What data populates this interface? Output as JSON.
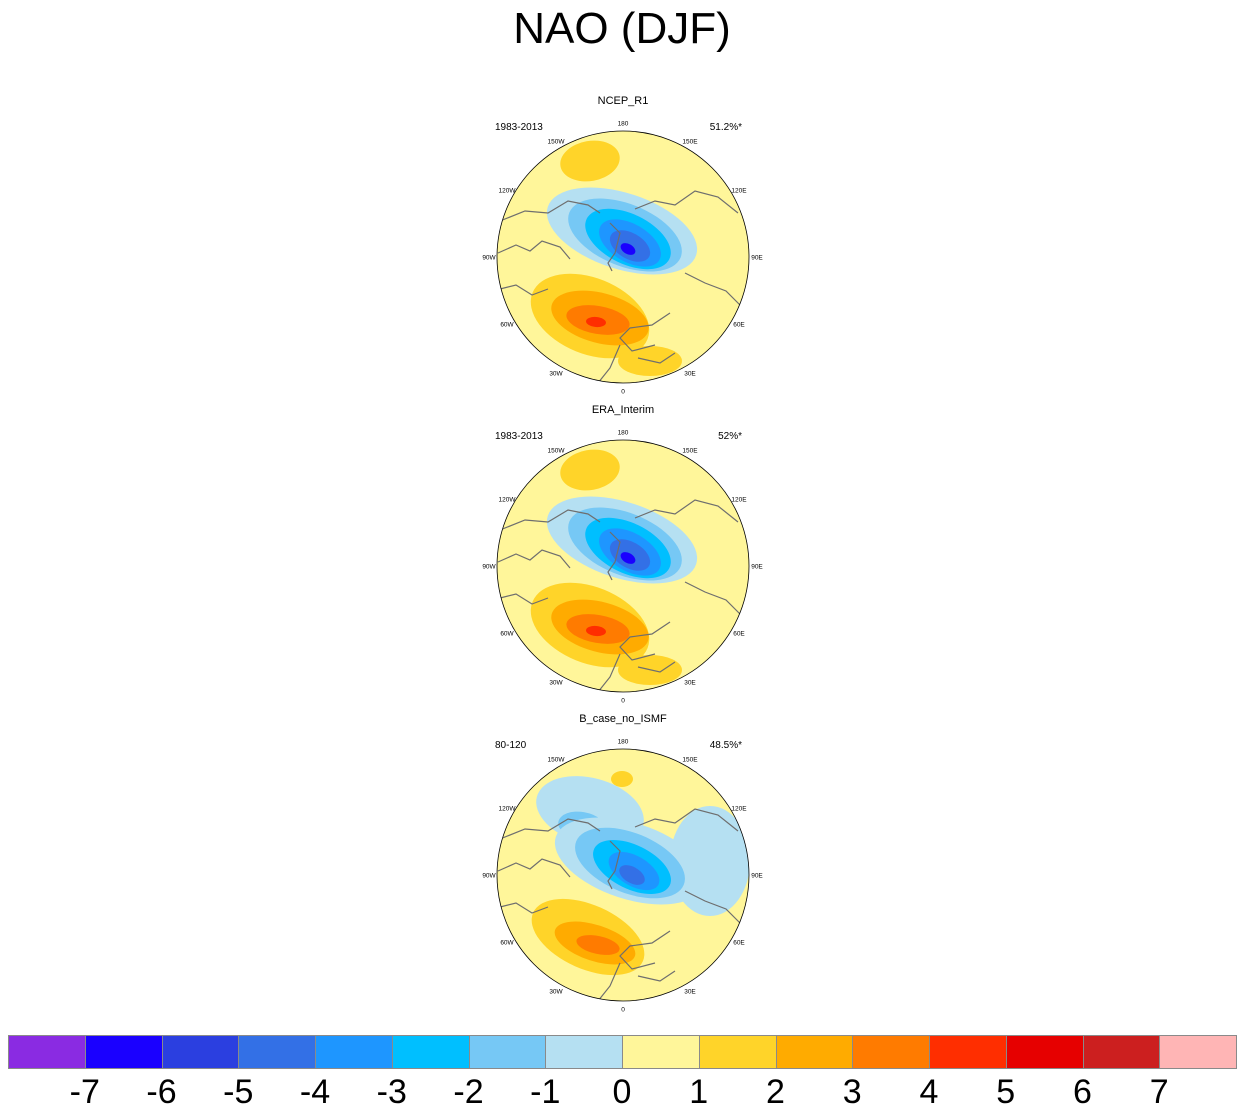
{
  "title": "NAO (DJF)",
  "panels": [
    {
      "title": "NCEP_R1",
      "period": "1983-2013",
      "percent": "51.2%*"
    },
    {
      "title": "ERA_Interim",
      "period": "1983-2013",
      "percent": "52%*"
    },
    {
      "title": "B_case_no_ISMF",
      "period": "80-120",
      "percent": "48.5%*"
    }
  ],
  "longitude_labels": {
    "180": "180",
    "150E": "150E",
    "120E": "120E",
    "90E": "90E",
    "60E": "60E",
    "30E": "30E",
    "0": "0",
    "30W": "30W",
    "60W": "60W",
    "90W": "90W",
    "120W": "120W",
    "150W": "150W"
  },
  "colorbar": {
    "labels": [
      "-7",
      "-6",
      "-5",
      "-4",
      "-3",
      "-2",
      "-1",
      "0",
      "1",
      "2",
      "3",
      "4",
      "5",
      "6",
      "7"
    ],
    "colors": [
      "#8a2be2",
      "#1a00ff",
      "#2b3fe0",
      "#3370e6",
      "#1e96ff",
      "#00bfff",
      "#76c8f5",
      "#b5e0f2",
      "#fff69a",
      "#ffd429",
      "#ffab00",
      "#ff7b00",
      "#ff2e00",
      "#e60000",
      "#cc1f1f",
      "#ffb5b5"
    ]
  }
}
